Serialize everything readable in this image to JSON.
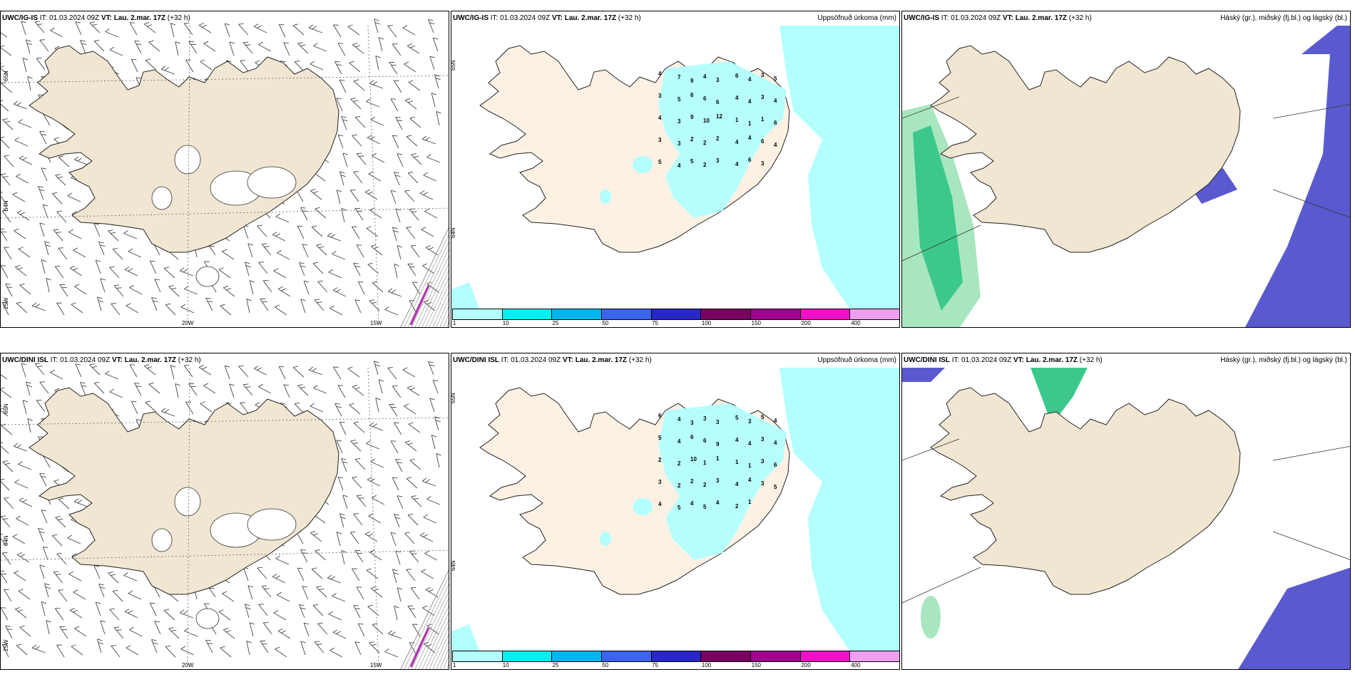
{
  "panels": {
    "r1c1": {
      "model": "UWC/IG-IS",
      "it_label": "IT:",
      "it_value": "01.03.2024 09Z",
      "vt_label": "VT:",
      "vt_value": "Lau. 2.mar. 17Z",
      "lead": "(+32 h)",
      "lat_labels": [
        "65N",
        "64N",
        "25W"
      ],
      "lon_labels": [
        "20W",
        "15W"
      ]
    },
    "r1c2": {
      "model": "UWC/IG-IS",
      "it_label": "IT:",
      "it_value": "01.03.2024 09Z",
      "vt_label": "VT:",
      "vt_value": "Lau. 2.mar. 17Z",
      "lead": "(+32 h)",
      "title": "Uppsöfnuð úrkoma (mm)",
      "lat_labels": [
        "65N",
        "64N"
      ]
    },
    "r1c3": {
      "model": "UWC/IG-IS",
      "it_label": "IT:",
      "it_value": "01.03.2024 09Z",
      "vt_label": "VT:",
      "vt_value": "Lau. 2.mar. 17Z",
      "lead": "(+32 h)",
      "title": "Háský (gr.), miðský (fj.bl.) og lágský (bl.)"
    },
    "r2c1": {
      "model": "UWC/DINI ISL",
      "it_label": "IT:",
      "it_value": "01.03.2024 09Z",
      "vt_label": "VT:",
      "vt_value": "Lau. 2.mar. 17Z",
      "lead": "(+32 h)",
      "lat_labels": [
        "65N",
        "64N",
        "25W"
      ],
      "lon_labels": [
        "20W",
        "15W"
      ]
    },
    "r2c2": {
      "model": "UWC/DINI ISL",
      "it_label": "IT:",
      "it_value": "01.03.2024 09Z",
      "vt_label": "VT:",
      "vt_value": "Lau. 2.mar. 17Z",
      "lead": "(+32 h)",
      "title": "Uppsöfnuð úrkoma (mm)",
      "lat_labels": [
        "65N",
        "64N"
      ]
    },
    "r2c3": {
      "model": "UWC/DINI ISL",
      "it_label": "IT:",
      "it_value": "01.03.2024 09Z",
      "vt_label": "VT:",
      "vt_value": "Lau. 2.mar. 17Z",
      "lead": "(+32 h)",
      "title": "Háský (gr.), miðský (fj.bl.) og lágský (bl.)"
    }
  },
  "precip_colorbar": {
    "labels": [
      "1",
      "10",
      "25",
      "50",
      "75",
      "100",
      "150",
      "200",
      "400"
    ],
    "colors": [
      "#b3ffff",
      "#00f0f0",
      "#00b4f0",
      "#3c64f0",
      "#2828c8",
      "#780060",
      "#a00090",
      "#f010c8",
      "#f0a0f0"
    ]
  },
  "precip_values": {
    "r1c2": [
      "4",
      "7",
      "9",
      "4",
      "3",
      "6",
      "4",
      "3",
      "5",
      "3",
      "5",
      "6",
      "6",
      "6",
      "4",
      "4",
      "3",
      "4",
      "4",
      "3",
      "9",
      "10",
      "12",
      "1",
      "1",
      "1",
      "6",
      "3",
      "3",
      "2",
      "2",
      "2",
      "4",
      "4",
      "6",
      "4",
      "5",
      "4",
      "5",
      "2",
      "3",
      "4",
      "6",
      "3"
    ],
    "r2c2": [
      "6",
      "4",
      "3",
      "3",
      "3",
      "5",
      "3",
      "5",
      "4",
      "5",
      "4",
      "6",
      "6",
      "9",
      "4",
      "4",
      "3",
      "4",
      "2",
      "2",
      "10",
      "1",
      "1",
      "1",
      "1",
      "3",
      "6",
      "3",
      "2",
      "2",
      "2",
      "3",
      "4",
      "4",
      "3",
      "5",
      "4",
      "5",
      "4",
      "5",
      "4",
      "2",
      "1"
    ]
  },
  "colors": {
    "land": "#f0e6d2",
    "land_light": "#fdf1e4",
    "precip_light": "#b3ffff",
    "cloud_low": "#5a5ad0",
    "cloud_mid": "#3ca0e6",
    "cloud_high": "#3cc88c",
    "barb_color": "#444444",
    "hatch_color": "#888888"
  }
}
